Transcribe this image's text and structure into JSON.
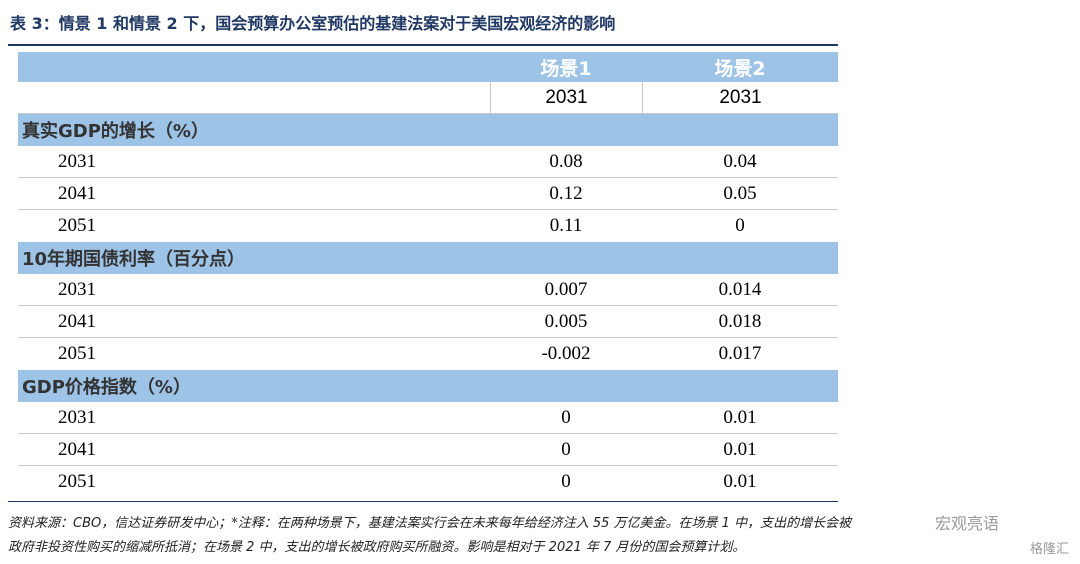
{
  "header": {
    "title": "表 3：情景 1 和情景 2 下，国会预算办公室预估的基建法案对于美国宏观经济的影响"
  },
  "table": {
    "columns": [
      "场景1",
      "场景2"
    ],
    "years": [
      "2031",
      "2031"
    ],
    "sections": [
      {
        "title": "真实GDP的增长（%）",
        "rows": [
          [
            "2031",
            "0.08",
            "0.04"
          ],
          [
            "2041",
            "0.12",
            "0.05"
          ],
          [
            "2051",
            "0.11",
            "0"
          ]
        ]
      },
      {
        "title": "10年期国债利率（百分点）",
        "rows": [
          [
            "2031",
            "0.007",
            "0.014"
          ],
          [
            "2041",
            "0.005",
            "0.018"
          ],
          [
            "2051",
            "-0.002",
            "0.017"
          ]
        ]
      },
      {
        "title": "GDP价格指数（%）",
        "rows": [
          [
            "2031",
            "0",
            "0.01"
          ],
          [
            "2041",
            "0",
            "0.01"
          ],
          [
            "2051",
            "0",
            "0.01"
          ]
        ]
      }
    ]
  },
  "footer": {
    "lines": [
      "资料来源：CBO，信达证券研发中心；*注释：在两种场景下，基建法案实行会在未来每年给经济注入 55 万亿美金。在场景 1 中，支出的增长会被",
      "政府非投资性购买的缩减所抵消；在场景 2 中，支出的增长被政府购买所融资。影响是相对于 2021 年 7 月份的国会预算计划。"
    ]
  },
  "watermarks": [
    "宏观亮语",
    "格隆汇"
  ]
}
